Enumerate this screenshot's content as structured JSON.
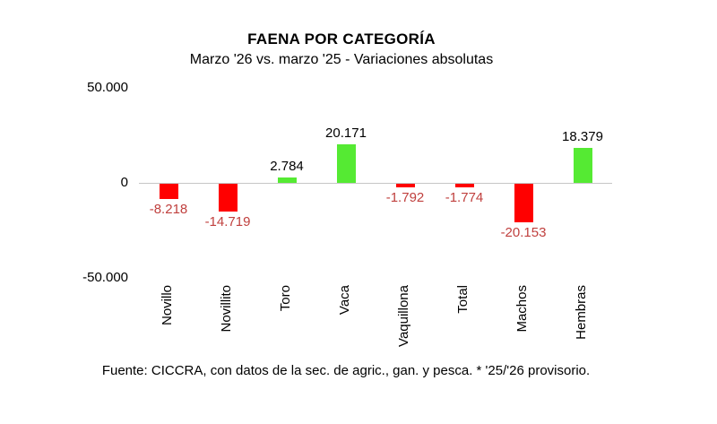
{
  "title": "FAENA POR CATEGORÍA",
  "subtitle": "Marzo '26 vs. marzo '25 - Variaciones absolutas",
  "footer": "Fuente: CICCRA, con datos de la sec. de agric., gan. y pesca. * '25/'26 provisorio.",
  "chart_data": {
    "type": "bar",
    "title": "FAENA POR CATEGORÍA",
    "subtitle": "Marzo '26 vs. marzo '25 - Variaciones absolutas",
    "categories": [
      "Novillo",
      "Novillito",
      "Toro",
      "Vaca",
      "Vaquillona",
      "Total",
      "Machos",
      "Hembras"
    ],
    "values": [
      -8218,
      -14719,
      2784,
      20171,
      -1792,
      -1774,
      -20153,
      18379
    ],
    "value_labels": [
      "-8.218",
      "-14.719",
      "2.784",
      "20.171",
      "-1.792",
      "-1.774",
      "-20.153",
      "18.379"
    ],
    "xlabel": "",
    "ylabel": "",
    "ylim": [
      -50000,
      50000
    ],
    "yticks": [
      {
        "value": 50000,
        "label": "50.000"
      },
      {
        "value": 0,
        "label": "0"
      },
      {
        "value": -50000,
        "label": "-50.000"
      }
    ],
    "grid": false,
    "legend": false,
    "source_note": "Fuente: CICCRA, con datos de la sec. de agric., gan. y pesca. * '25/'26 provisorio.",
    "colors": {
      "positive_bar": "#55EA33",
      "negative_bar": "#FF0000",
      "positive_label_text": "#000000",
      "negative_label_text": "#C0403E",
      "zero_line": "#C6C6C6"
    }
  }
}
